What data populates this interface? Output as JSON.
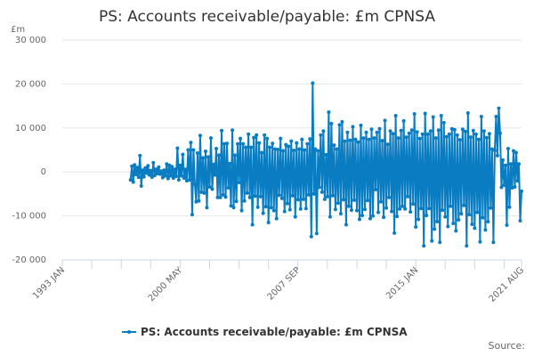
{
  "chart_data": {
    "type": "line",
    "title": "PS: Accounts receivable/payable: £m CPNSA",
    "ylabel": "£m",
    "xlabel": "",
    "ylim": [
      -20000,
      30000
    ],
    "yticks": [
      30000,
      20000,
      10000,
      0,
      -10000,
      -20000
    ],
    "ytick_labels": [
      "30 000",
      "20 000",
      "10 000",
      "0",
      "-10 000",
      "-20 000"
    ],
    "x_range": [
      "1993 JAN",
      "2021 AUG"
    ],
    "xtick_labels": [
      "1993 JAN",
      "2000 MAY",
      "2007 SEP",
      "2015 JAN",
      "2021 AUG"
    ],
    "xtick_label_month_offsets": [
      0,
      88,
      176,
      264,
      343
    ],
    "minor_tick_every_months": 22,
    "grid": "horizontal",
    "legend_position": "bottom-center",
    "color": "#0a7cc2",
    "series": [
      {
        "name": "PS: Accounts receivable/payable: £m CPNSA",
        "start": "1997 APR",
        "frequency": "monthly",
        "values": [
          -1800,
          1300,
          -2300,
          1600,
          -600,
          1000,
          -1200,
          3700,
          -3200,
          400,
          -1100,
          900,
          -300,
          1400,
          -700,
          300,
          -1200,
          2100,
          -800,
          600,
          -400,
          1100,
          -500,
          200,
          -1300,
          400,
          -900,
          1800,
          -1500,
          1500,
          -900,
          1200,
          -1400,
          600,
          -1000,
          5400,
          -1800,
          1500,
          -900,
          4000,
          -1400,
          600,
          -2000,
          5000,
          -1800,
          6700,
          -9700,
          5000,
          -2800,
          -6800,
          4300,
          -6600,
          8300,
          -4600,
          3200,
          -4800,
          4700,
          -8100,
          3400,
          -3400,
          7700,
          -3900,
          1700,
          -700,
          5300,
          -5800,
          3800,
          -5800,
          9400,
          -5200,
          6400,
          -5700,
          6500,
          -3600,
          1900,
          -7700,
          9500,
          -8100,
          3800,
          -6700,
          6400,
          -2400,
          7600,
          -8800,
          6400,
          -6600,
          5600,
          -4800,
          8600,
          -5800,
          5600,
          -12000,
          7800,
          -5500,
          8400,
          -8000,
          6600,
          -5600,
          4400,
          -9400,
          8400,
          -7900,
          7600,
          -11500,
          5600,
          -8100,
          6500,
          -8800,
          5200,
          -10600,
          5100,
          -5300,
          7600,
          -6000,
          4800,
          -9000,
          6200,
          -7200,
          5800,
          -8600,
          7000,
          -5400,
          4900,
          -10200,
          6600,
          -6300,
          5200,
          -8400,
          7400,
          -6200,
          5000,
          -8300,
          6400,
          -5200,
          7500,
          -14700,
          20200,
          -5000,
          5200,
          -14000,
          4800,
          -3500,
          8400,
          -4600,
          9300,
          -6200,
          3900,
          -5600,
          13600,
          -10200,
          11000,
          -5400,
          6100,
          -8500,
          5200,
          -7100,
          10700,
          -9500,
          11400,
          -6300,
          7000,
          -12000,
          9000,
          -7800,
          7200,
          -8700,
          10300,
          -6400,
          7400,
          -8800,
          6800,
          -10800,
          10600,
          -9900,
          7700,
          -8500,
          9000,
          -6500,
          7400,
          -10600,
          9700,
          -10000,
          7700,
          -4000,
          9000,
          -9200,
          9800,
          -6800,
          7100,
          -10300,
          11700,
          -8200,
          6300,
          -5800,
          9300,
          -9000,
          8700,
          -13900,
          12800,
          -10100,
          7700,
          -8400,
          9400,
          -7800,
          11600,
          -8400,
          7900,
          -5600,
          8800,
          -9100,
          9500,
          -7300,
          13200,
          -12500,
          9100,
          -10800,
          7600,
          -8300,
          8600,
          -16800,
          13300,
          -9900,
          8600,
          -8300,
          9300,
          -15700,
          12500,
          -13000,
          7700,
          -11300,
          9500,
          -16000,
          12800,
          -8700,
          11200,
          -10200,
          8000,
          -12400,
          8600,
          -7800,
          9800,
          -11700,
          9600,
          -13400,
          8400,
          -10900,
          7300,
          -9500,
          9700,
          -7600,
          9200,
          -16800,
          13400,
          -9700,
          7900,
          -11900,
          9400,
          -12800,
          8600,
          -9200,
          7400,
          -15900,
          12600,
          -10400,
          9300,
          -13200,
          7800,
          -11300,
          8700,
          -8200,
          5200,
          -16000,
          4900,
          12600,
          3700,
          14500,
          8800,
          -3500,
          2700,
          -3000,
          1500,
          -12100,
          5300,
          -8000,
          1800,
          -3600,
          4800,
          -3400,
          4400,
          -2000,
          1800,
          -11100,
          -4400
        ]
      }
    ],
    "source_label": "Source:"
  }
}
